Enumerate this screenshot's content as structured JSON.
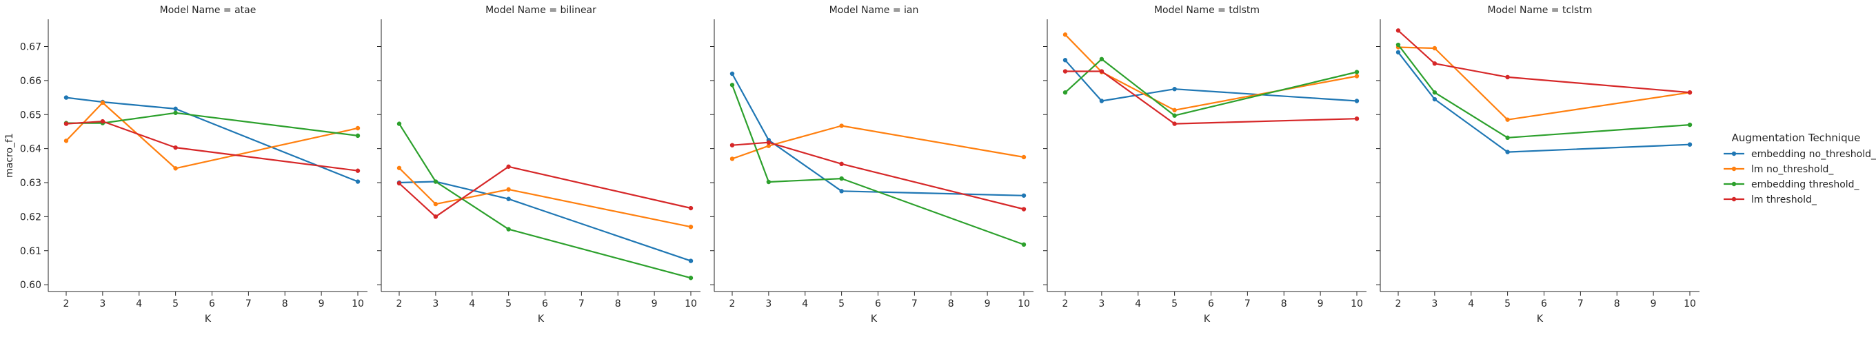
{
  "chart_data": {
    "type": "line",
    "ylabel": "macro_f1",
    "xlabel": "K",
    "x_ticks": [
      2,
      3,
      4,
      5,
      6,
      7,
      8,
      9,
      10
    ],
    "y_ticks": [
      0.6,
      0.61,
      0.62,
      0.63,
      0.64,
      0.65,
      0.66,
      0.67
    ],
    "y_tick_labels": [
      "0.60",
      "0.61",
      "0.62",
      "0.63",
      "0.64",
      "0.65",
      "0.66",
      "0.67"
    ],
    "ylim": [
      0.598,
      0.678
    ],
    "xlim": [
      1.6,
      10.4
    ],
    "x": [
      2,
      3,
      5,
      10
    ],
    "legend": {
      "title": "Augmentation Technique",
      "placement": "right",
      "entries": [
        "embedding no_threshold_",
        "lm no_threshold_",
        "embedding threshold_",
        "lm threshold_"
      ]
    },
    "colors": [
      "#1f77b4",
      "#ff7f0e",
      "#2ca02c",
      "#d62728"
    ],
    "panels": [
      {
        "title": "Model Name = atae",
        "series": [
          {
            "name": "embedding no_threshold_",
            "values": [
              0.655,
              0.6537,
              0.6517,
              0.6303
            ]
          },
          {
            "name": "lm no_threshold_",
            "values": [
              0.6423,
              0.6535,
              0.6342,
              0.646
            ]
          },
          {
            "name": "embedding threshold_",
            "values": [
              0.6475,
              0.6475,
              0.6505,
              0.6438
            ]
          },
          {
            "name": "lm threshold_",
            "values": [
              0.6473,
              0.648,
              0.6403,
              0.6335
            ]
          }
        ]
      },
      {
        "title": "Model Name = bilinear",
        "series": [
          {
            "name": "embedding no_threshold_",
            "values": [
              0.63,
              0.6303,
              0.6252,
              0.607
            ]
          },
          {
            "name": "lm no_threshold_",
            "values": [
              0.6343,
              0.6237,
              0.628,
              0.617
            ]
          },
          {
            "name": "embedding threshold_",
            "values": [
              0.6473,
              0.6303,
              0.6163,
              0.602
            ]
          },
          {
            "name": "lm threshold_",
            "values": [
              0.6298,
              0.62,
              0.6347,
              0.6225
            ]
          }
        ]
      },
      {
        "title": "Model Name = ian",
        "series": [
          {
            "name": "embedding no_threshold_",
            "values": [
              0.662,
              0.6425,
              0.6275,
              0.6262
            ]
          },
          {
            "name": "lm no_threshold_",
            "values": [
              0.637,
              0.6408,
              0.6467,
              0.6375
            ]
          },
          {
            "name": "embedding threshold_",
            "values": [
              0.6587,
              0.6302,
              0.6312,
              0.6118
            ]
          },
          {
            "name": "lm threshold_",
            "values": [
              0.641,
              0.6418,
              0.6355,
              0.6222
            ]
          }
        ]
      },
      {
        "title": "Model Name = tdlstm",
        "series": [
          {
            "name": "embedding no_threshold_",
            "values": [
              0.666,
              0.654,
              0.6575,
              0.654
            ]
          },
          {
            "name": "lm no_threshold_",
            "values": [
              0.6735,
              0.6625,
              0.6513,
              0.6613
            ]
          },
          {
            "name": "embedding threshold_",
            "values": [
              0.6565,
              0.6663,
              0.6497,
              0.6625
            ]
          },
          {
            "name": "lm threshold_",
            "values": [
              0.6627,
              0.6627,
              0.6473,
              0.6488
            ]
          }
        ]
      },
      {
        "title": "Model Name = tclstm",
        "series": [
          {
            "name": "embedding no_threshold_",
            "values": [
              0.6683,
              0.6545,
              0.639,
              0.6412
            ]
          },
          {
            "name": "lm no_threshold_",
            "values": [
              0.6698,
              0.6695,
              0.6485,
              0.6565
            ]
          },
          {
            "name": "embedding threshold_",
            "values": [
              0.6705,
              0.6565,
              0.6432,
              0.647
            ]
          },
          {
            "name": "lm threshold_",
            "values": [
              0.6747,
              0.665,
              0.661,
              0.6565
            ]
          }
        ]
      }
    ]
  }
}
